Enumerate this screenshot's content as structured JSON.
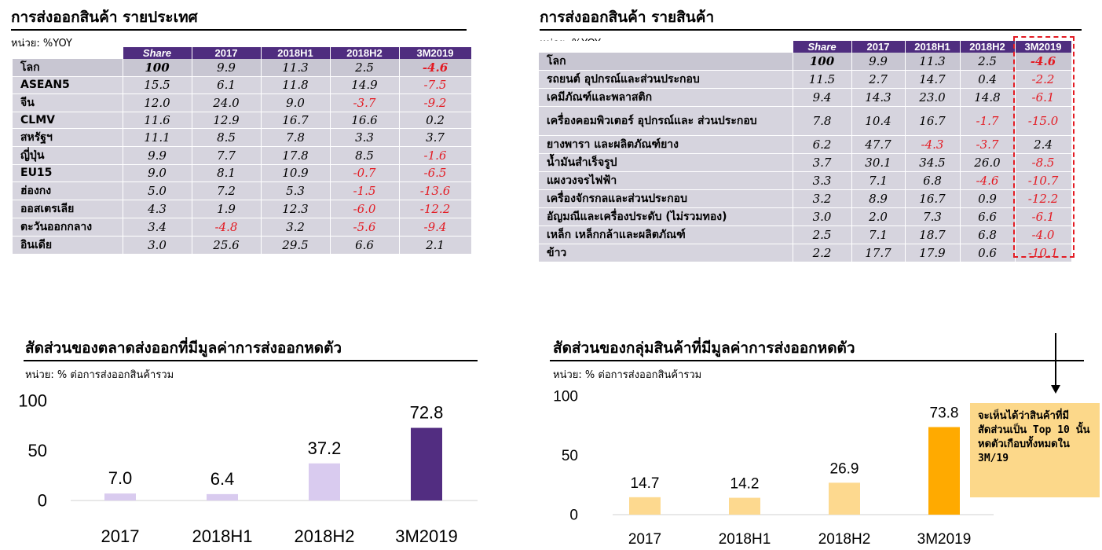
{
  "panel1": {
    "title": "การส่งออกสินค้า รายประเทศ",
    "unit": "หน่วย: %YOY",
    "headers": [
      "Share",
      "2017",
      "2018H1",
      "2018H2",
      "3M2019"
    ],
    "rows": [
      {
        "label": "โลก",
        "values": [
          "100",
          "9.9",
          "11.3",
          "2.5",
          "-4.6"
        ]
      },
      {
        "label": "ASEAN5",
        "values": [
          "15.5",
          "6.1",
          "11.8",
          "14.9",
          "-7.5"
        ]
      },
      {
        "label": "จีน",
        "values": [
          "12.0",
          "24.0",
          "9.0",
          "-3.7",
          "-9.2"
        ]
      },
      {
        "label": "CLMV",
        "values": [
          "11.6",
          "12.9",
          "16.7",
          "16.6",
          "0.2"
        ]
      },
      {
        "label": "สหรัฐฯ",
        "values": [
          "11.1",
          "8.5",
          "7.8",
          "3.3",
          "3.7"
        ]
      },
      {
        "label": "ญี่ปุ่น",
        "values": [
          "9.9",
          "7.7",
          "17.8",
          "8.5",
          "-1.6"
        ]
      },
      {
        "label": "EU15",
        "values": [
          "9.0",
          "8.1",
          "10.9",
          "-0.7",
          "-6.5"
        ]
      },
      {
        "label": "ฮ่องกง",
        "values": [
          "5.0",
          "7.2",
          "5.3",
          "-1.5",
          "-13.6"
        ]
      },
      {
        "label": "ออสเตรเลีย",
        "values": [
          "4.3",
          "1.9",
          "12.3",
          "-6.0",
          "-12.2"
        ]
      },
      {
        "label": "ตะวันออกกลาง",
        "values": [
          "3.4",
          "-4.8",
          "3.2",
          "-5.6",
          "-9.4"
        ]
      },
      {
        "label": "อินเดีย",
        "values": [
          "3.0",
          "25.6",
          "29.5",
          "6.6",
          "2.1"
        ]
      }
    ]
  },
  "panel2": {
    "title": "การส่งออกสินค้า รายสินค้า",
    "unit": "หน่วย: %YOY",
    "headers": [
      "Share",
      "2017",
      "2018H1",
      "2018H2",
      "3M2019"
    ],
    "rows": [
      {
        "label": "โลก",
        "values": [
          "100",
          "9.9",
          "11.3",
          "2.5",
          "-4.6"
        ]
      },
      {
        "label": "รถยนต์ อุปกรณ์และส่วนประกอบ",
        "values": [
          "11.5",
          "2.7",
          "14.7",
          "0.4",
          "-2.2"
        ]
      },
      {
        "label": "เคมีภัณฑ์และพลาสติก",
        "values": [
          "9.4",
          "14.3",
          "23.0",
          "14.8",
          "-6.1"
        ]
      },
      {
        "label": "เครื่องคอมพิวเตอร์ อุปกรณ์และ ส่วนประกอบ",
        "values": [
          "7.8",
          "10.4",
          "16.7",
          "-1.7",
          "-15.0"
        ]
      },
      {
        "label": "ยางพารา และผลิตภัณฑ์ยาง",
        "values": [
          "6.2",
          "47.7",
          "-4.3",
          "-3.7",
          "2.4"
        ]
      },
      {
        "label": "น้ำมันสำเร็จรูป",
        "values": [
          "3.7",
          "30.1",
          "34.5",
          "26.0",
          "-8.5"
        ]
      },
      {
        "label": "แผงวงจรไฟฟ้า",
        "values": [
          "3.3",
          "7.1",
          "6.8",
          "-4.6",
          "-10.7"
        ]
      },
      {
        "label": "เครื่องจักรกลและส่วนประกอบ",
        "values": [
          "3.2",
          "8.9",
          "16.7",
          "0.9",
          "-12.2"
        ]
      },
      {
        "label": "อัญมณีและเครื่องประดับ (ไม่รวมทอง)",
        "values": [
          "3.0",
          "2.0",
          "7.3",
          "6.6",
          "-6.1"
        ]
      },
      {
        "label": "เหล็ก เหล็กกล้าและผลิตภัณฑ์",
        "values": [
          "2.5",
          "7.1",
          "18.7",
          "6.8",
          "-4.0"
        ]
      },
      {
        "label": "ข้าว",
        "values": [
          "2.2",
          "17.7",
          "17.9",
          "0.6",
          "-10.1"
        ]
      }
    ]
  },
  "panel3": {
    "title": "สัดส่วนของตลาดส่งออกที่มีมูลค่าการส่งออกหดตัว",
    "unit": "หน่วย: % ต่อการส่งออกสินค้ารวม"
  },
  "panel4": {
    "title": "สัดส่วนของกลุ่มสินค้าที่มีมูลค่าการส่งออกหดตัว",
    "unit": "หน่วย: % ต่อการส่งออกสินค้ารวม",
    "callout": "จะเห็นได้ว่าสินค้าที่มีสัดส่วนเป็น Top 10 นั้นหดตัวเกือบทั้งหมดใน 3M/19"
  },
  "colors": {
    "header_purple": "#4f2d7f",
    "negative_red": "#e31b23",
    "bar_light_purple": "#d9cbef",
    "bar_dark_purple": "#522d81",
    "bar_light_orange": "#fdd98f",
    "bar_orange": "#ffaa00"
  },
  "chart_data": [
    {
      "type": "bar",
      "title": "สัดส่วนของตลาดส่งออกที่มีมูลค่าการส่งออกหดตัว",
      "categories": [
        "2017",
        "2018H1",
        "2018H2",
        "3M2019"
      ],
      "values": [
        7.0,
        6.4,
        37.2,
        72.8
      ],
      "labels": [
        "7.0",
        "6.4",
        "37.2",
        "72.8"
      ],
      "yticks": [
        "0",
        "50",
        "100"
      ],
      "ylim": [
        0,
        100
      ],
      "colors": [
        "#d9cbef",
        "#d9cbef",
        "#d9cbef",
        "#522d81"
      ]
    },
    {
      "type": "bar",
      "title": "สัดส่วนของกลุ่มสินค้าที่มีมูลค่าการส่งออกหดตัว",
      "categories": [
        "2017",
        "2018H1",
        "2018H2",
        "3M2019"
      ],
      "values": [
        14.7,
        14.2,
        26.9,
        73.8
      ],
      "labels": [
        "14.7",
        "14.2",
        "26.9",
        "73.8"
      ],
      "yticks": [
        "0",
        "50",
        "100"
      ],
      "ylim": [
        0,
        100
      ],
      "colors": [
        "#fdd98f",
        "#fdd98f",
        "#fdd98f",
        "#ffaa00"
      ]
    }
  ]
}
